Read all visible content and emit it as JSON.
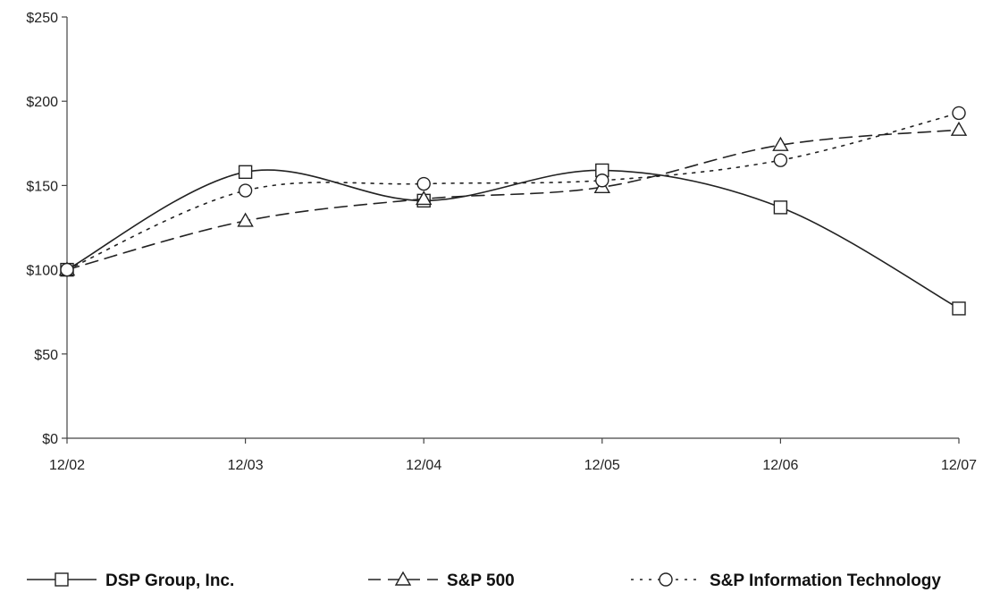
{
  "chart_data": {
    "type": "line",
    "categories": [
      "12/02",
      "12/03",
      "12/04",
      "12/05",
      "12/06",
      "12/07"
    ],
    "ylim": [
      0,
      250
    ],
    "yticks": [
      0,
      50,
      100,
      150,
      200,
      250
    ],
    "ytick_labels": [
      "$0",
      "$50",
      "$100",
      "$150",
      "$200",
      "$250"
    ],
    "grid": false,
    "legend_placement": "bottom",
    "series": [
      {
        "name": "DSP Group, Inc.",
        "values": [
          100,
          158,
          141,
          159,
          137,
          77
        ],
        "marker": "square",
        "dash": "solid",
        "smooth": true
      },
      {
        "name": "S&P 500",
        "values": [
          100,
          129,
          142,
          149,
          174,
          183
        ],
        "marker": "triangle",
        "dash": "long-dash",
        "smooth": true
      },
      {
        "name": "S&P Information Technology",
        "values": [
          100,
          147,
          151,
          153,
          165,
          193
        ],
        "marker": "circle",
        "dash": "dotted",
        "smooth": true
      }
    ],
    "colors": {
      "line": "#222222",
      "axis": "#444444"
    }
  }
}
